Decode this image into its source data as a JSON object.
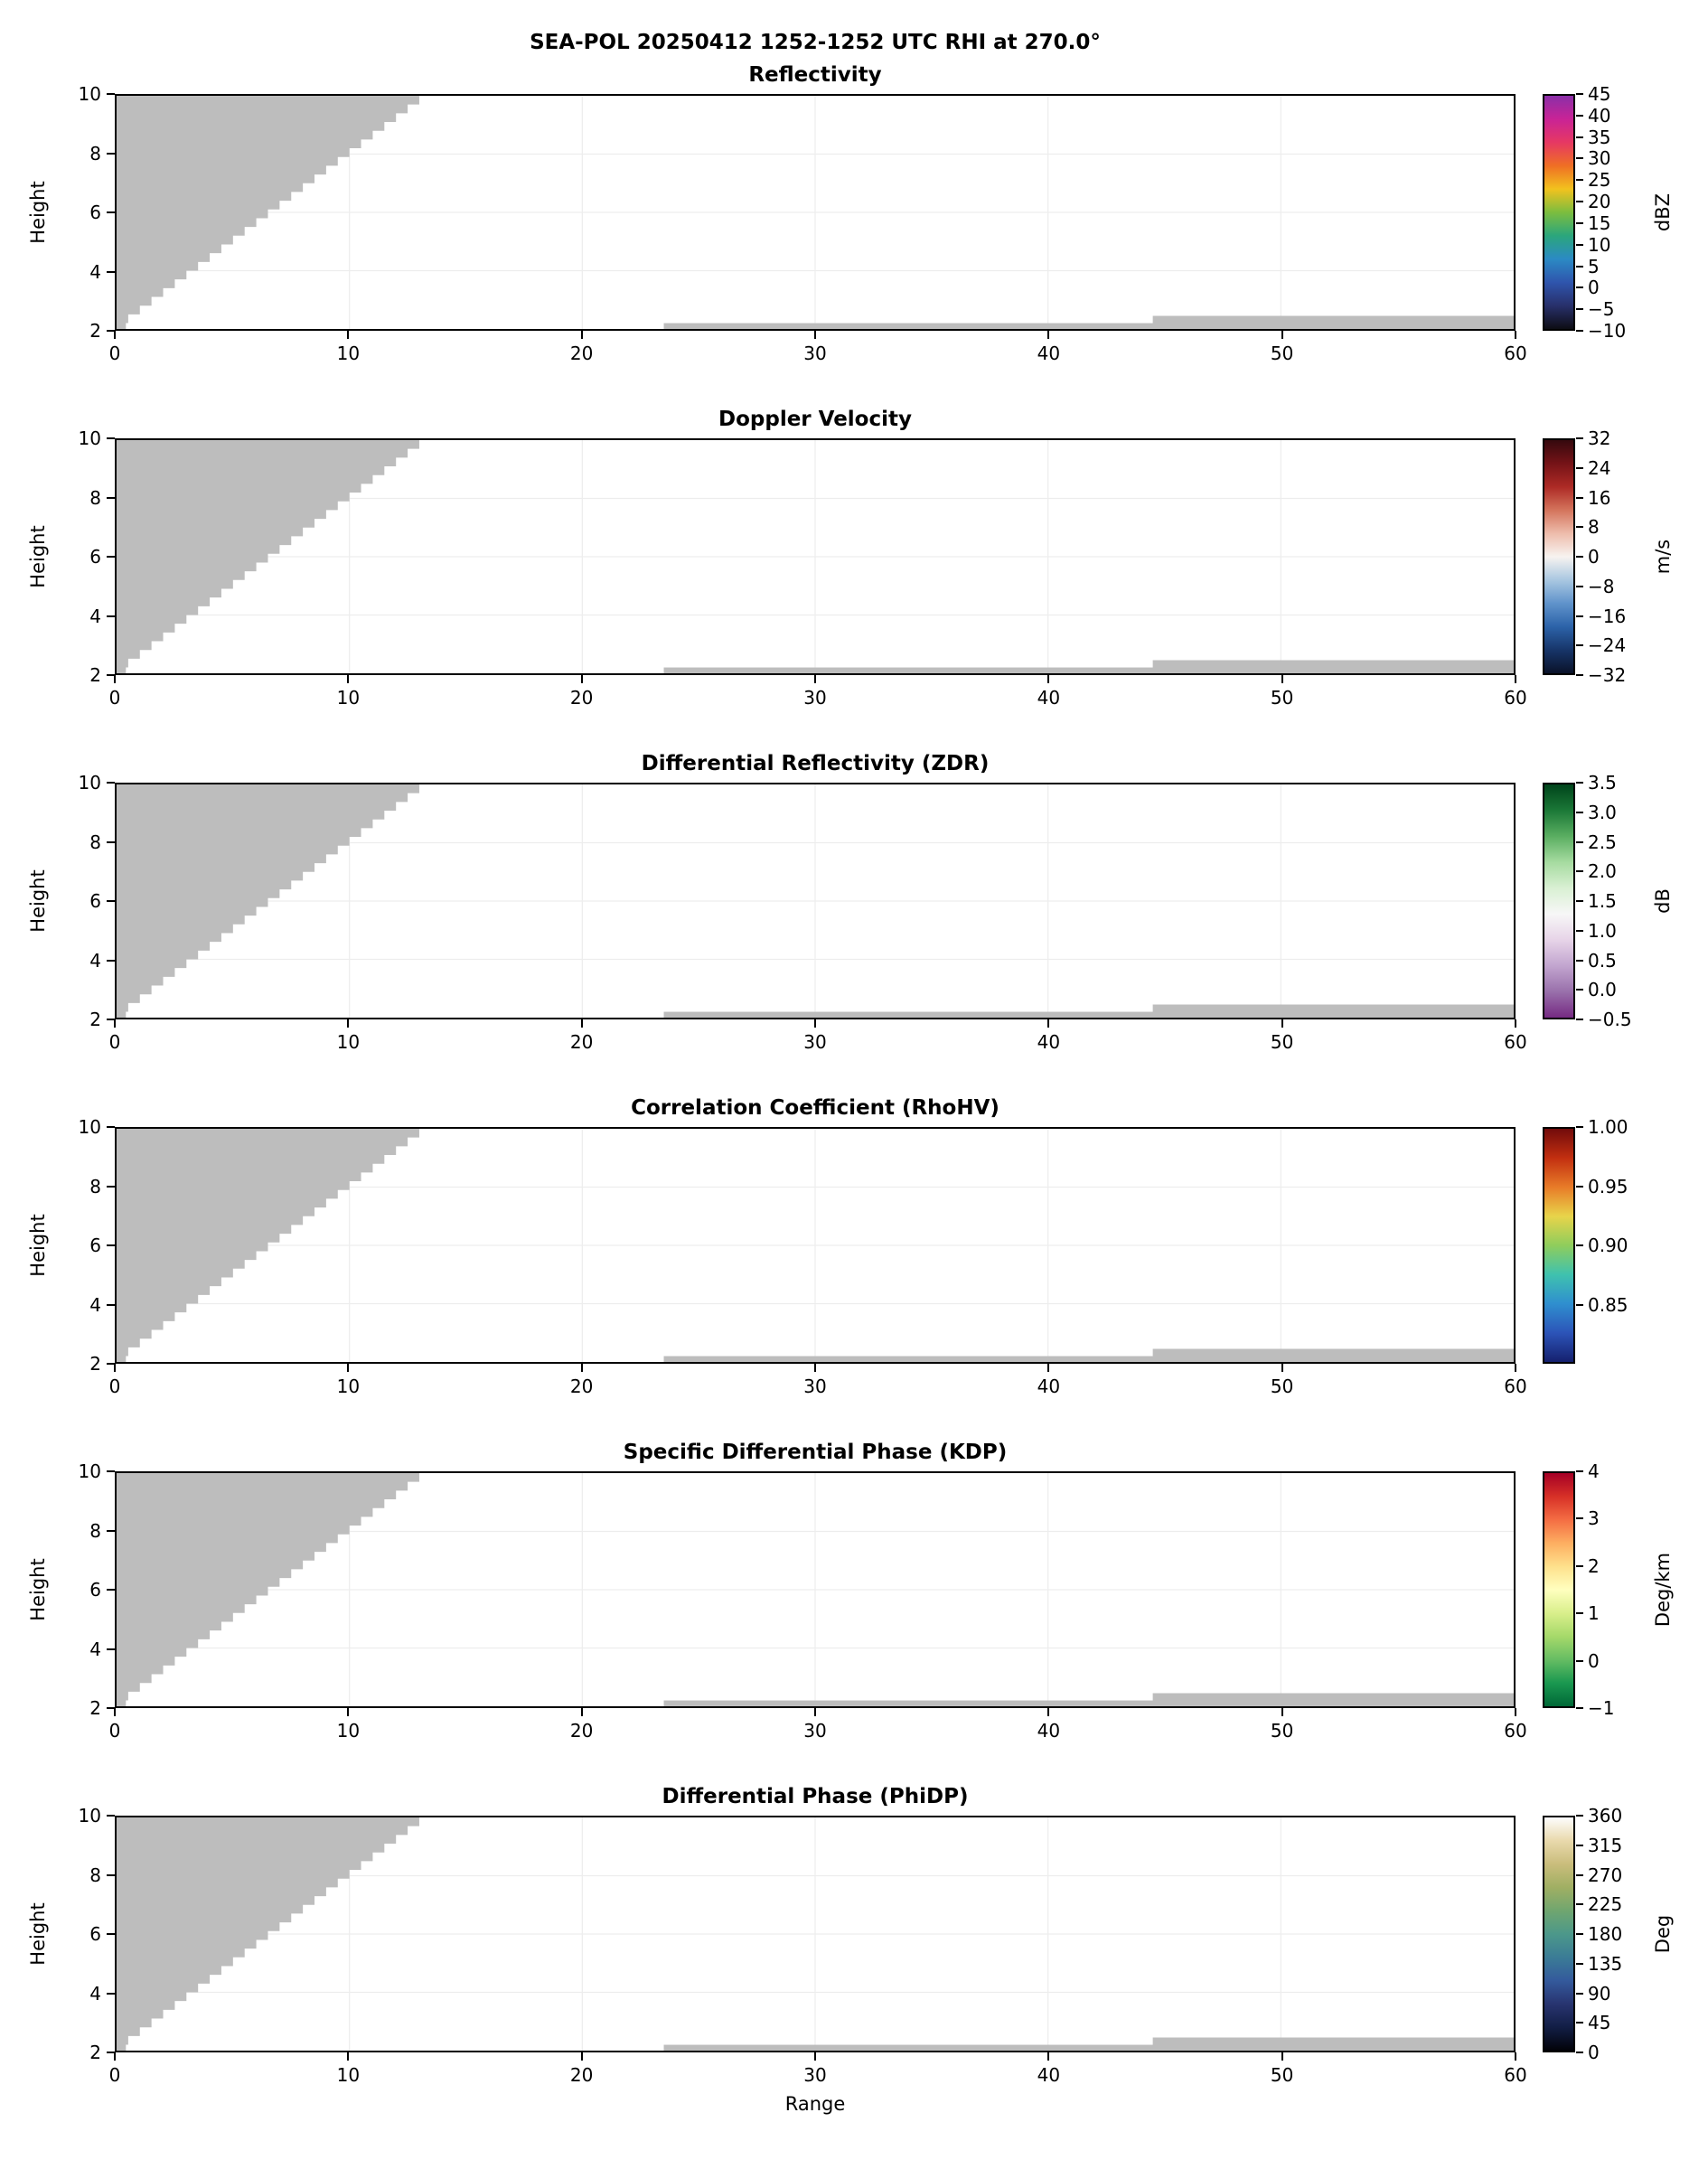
{
  "figure": {
    "suptitle": "SEA-POL 20250412 1252-1252 UTC RHI at 270.0°",
    "xlabel": "Range",
    "ylabel": "Height",
    "background": "#ffffff",
    "mask_color": "#bdbdbd",
    "grid_color": "#ededed",
    "no_data_regions": {
      "wedge": {
        "x_range": [
          0,
          13
        ],
        "y_start": 2.2,
        "y_end": 10,
        "step": 0.5
      },
      "strips": [
        {
          "x_range": [
            0,
            0.4
          ],
          "y_range": [
            2.0,
            2.9
          ]
        },
        {
          "x_range": [
            23.5,
            60
          ],
          "y_range": [
            2.0,
            2.2
          ]
        },
        {
          "x_range": [
            44.5,
            60
          ],
          "y_range": [
            2.0,
            2.45
          ]
        }
      ]
    }
  },
  "chart_data": [
    {
      "type": "heatmap",
      "title": "Reflectivity",
      "xlabel": "",
      "ylabel": "Height",
      "xlim": [
        0,
        60
      ],
      "ylim": [
        2,
        10
      ],
      "x_ticks": [
        0,
        10,
        20,
        30,
        40,
        50,
        60
      ],
      "y_ticks": [
        2,
        4,
        6,
        8,
        10
      ],
      "colorbar": {
        "unit": "dBZ",
        "vmin": -10,
        "vmax": 45,
        "tick_values": [
          45,
          40,
          35,
          30,
          25,
          20,
          15,
          10,
          5,
          0,
          -5,
          -10
        ],
        "tick_labels": [
          "45",
          "40",
          "35",
          "30",
          "25",
          "20",
          "15",
          "10",
          "5",
          "0",
          "−5",
          "−10"
        ],
        "colors_top_to_bottom": [
          "#8b2fa8",
          "#c92396",
          "#e63863",
          "#ef6f24",
          "#f2c21e",
          "#7cbd3f",
          "#2ba67c",
          "#2b8ac4",
          "#2f55ad",
          "#28306b",
          "#0d0d14"
        ]
      }
    },
    {
      "type": "heatmap",
      "title": "Doppler Velocity",
      "xlabel": "",
      "ylabel": "Height",
      "xlim": [
        0,
        60
      ],
      "ylim": [
        2,
        10
      ],
      "x_ticks": [
        0,
        10,
        20,
        30,
        40,
        50,
        60
      ],
      "y_ticks": [
        2,
        4,
        6,
        8,
        10
      ],
      "colorbar": {
        "unit": "m/s",
        "vmin": -32,
        "vmax": 32,
        "tick_values": [
          32,
          24,
          16,
          8,
          0,
          -8,
          -16,
          -24,
          -32
        ],
        "tick_labels": [
          "32",
          "24",
          "16",
          "8",
          "0",
          "−8",
          "−16",
          "−24",
          "−32"
        ],
        "colors_top_to_bottom": [
          "#35090e",
          "#751317",
          "#ad2a25",
          "#d4745c",
          "#eebcab",
          "#f7f3f0",
          "#a9c7e1",
          "#6093cb",
          "#2c63a9",
          "#173569",
          "#0a1229"
        ]
      }
    },
    {
      "type": "heatmap",
      "title": "Differential Reflectivity (ZDR)",
      "xlabel": "",
      "ylabel": "Height",
      "xlim": [
        0,
        60
      ],
      "ylim": [
        2,
        10
      ],
      "x_ticks": [
        0,
        10,
        20,
        30,
        40,
        50,
        60
      ],
      "y_ticks": [
        2,
        4,
        6,
        8,
        10
      ],
      "colorbar": {
        "unit": "dB",
        "vmin": -0.5,
        "vmax": 3.5,
        "tick_values": [
          3.5,
          3.0,
          2.5,
          2.0,
          1.5,
          1.0,
          0.5,
          0.0,
          -0.5
        ],
        "tick_labels": [
          "3.5",
          "3.0",
          "2.5",
          "2.0",
          "1.5",
          "1.0",
          "0.5",
          "0.0",
          "−0.5"
        ],
        "colors_top_to_bottom": [
          "#00441b",
          "#1b7837",
          "#5aae61",
          "#a6dba0",
          "#d9f0d3",
          "#f7f7f7",
          "#e7d4e8",
          "#c2a5cf",
          "#9970ab",
          "#762a83"
        ]
      }
    },
    {
      "type": "heatmap",
      "title": "Correlation Coefficient (RhoHV)",
      "xlabel": "",
      "ylabel": "Height",
      "xlim": [
        0,
        60
      ],
      "ylim": [
        2,
        10
      ],
      "x_ticks": [
        0,
        10,
        20,
        30,
        40,
        50,
        60
      ],
      "y_ticks": [
        2,
        4,
        6,
        8,
        10
      ],
      "colorbar": {
        "unit": "",
        "vmin": 0.8,
        "vmax": 1.0,
        "tick_values": [
          1.0,
          0.95,
          0.9,
          0.85
        ],
        "tick_labels": [
          "1.00",
          "0.95",
          "0.90",
          "0.85"
        ],
        "colors_top_to_bottom": [
          "#720b0b",
          "#c22f10",
          "#e87b28",
          "#e8d44a",
          "#8fcd5c",
          "#3fc2ae",
          "#2f8fcf",
          "#2c54b8",
          "#15206e"
        ]
      }
    },
    {
      "type": "heatmap",
      "title": "Specific Differential Phase (KDP)",
      "xlabel": "",
      "ylabel": "Height",
      "xlim": [
        0,
        60
      ],
      "ylim": [
        2,
        10
      ],
      "x_ticks": [
        0,
        10,
        20,
        30,
        40,
        50,
        60
      ],
      "y_ticks": [
        2,
        4,
        6,
        8,
        10
      ],
      "colorbar": {
        "unit": "Deg/km",
        "vmin": -1,
        "vmax": 4,
        "tick_values": [
          4,
          3,
          2,
          1,
          0,
          -1
        ],
        "tick_labels": [
          "4",
          "3",
          "2",
          "1",
          "0",
          "−1"
        ],
        "colors_top_to_bottom": [
          "#a50026",
          "#d73027",
          "#f46d43",
          "#fdae61",
          "#fee08b",
          "#ffffbf",
          "#d9ef8b",
          "#a6d96a",
          "#66bd63",
          "#1a9850",
          "#006837"
        ]
      }
    },
    {
      "type": "heatmap",
      "title": "Differential Phase (PhiDP)",
      "xlabel": "Range",
      "ylabel": "Height",
      "xlim": [
        0,
        60
      ],
      "ylim": [
        2,
        10
      ],
      "x_ticks": [
        0,
        10,
        20,
        30,
        40,
        50,
        60
      ],
      "y_ticks": [
        2,
        4,
        6,
        8,
        10
      ],
      "colorbar": {
        "unit": "Deg",
        "vmin": 0,
        "vmax": 360,
        "tick_values": [
          360,
          315,
          270,
          225,
          180,
          135,
          90,
          45,
          0
        ],
        "tick_labels": [
          "360",
          "315",
          "270",
          "225",
          "180",
          "135",
          "90",
          "45",
          "0"
        ],
        "colors_top_to_bottom": [
          "#fdfdfd",
          "#e9d9ac",
          "#cabd7c",
          "#a0af63",
          "#70a66f",
          "#4c988a",
          "#3b7c96",
          "#345a9c",
          "#283470",
          "#121e45",
          "#020208"
        ]
      }
    }
  ]
}
